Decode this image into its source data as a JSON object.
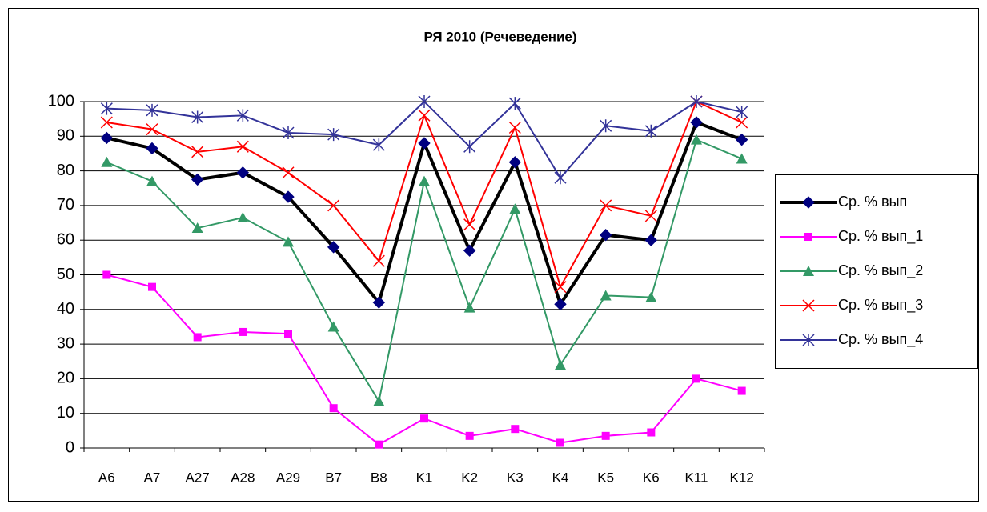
{
  "chart_data": {
    "type": "line",
    "title": "РЯ 2010 (Речеведение)",
    "categories": [
      "A6",
      "A7",
      "A27",
      "A28",
      "A29",
      "B7",
      "B8",
      "K1",
      "K2",
      "K3",
      "K4",
      "K5",
      "K6",
      "K11",
      "K12"
    ],
    "series": [
      {
        "name": "Ср. % вып",
        "color": "#000000",
        "marker_color": "#000080",
        "marker": "diamond",
        "values": [
          89.5,
          86.5,
          77.5,
          79.5,
          72.5,
          58,
          42,
          88,
          57,
          82.5,
          41.5,
          61.5,
          60,
          94,
          89
        ]
      },
      {
        "name": "Ср. % вып_1",
        "color": "#ff00ff",
        "marker_color": "#ff00ff",
        "marker": "square",
        "values": [
          50,
          46.5,
          32,
          33.5,
          33,
          11.5,
          1,
          8.5,
          3.5,
          5.5,
          1.5,
          3.5,
          4.5,
          20,
          16.5
        ]
      },
      {
        "name": "Ср. % вып_2",
        "color": "#339966",
        "marker_color": "#339966",
        "marker": "triangle",
        "values": [
          82.5,
          77,
          63.5,
          66.5,
          59.5,
          35,
          13.5,
          77,
          40.5,
          69,
          24,
          44,
          43.5,
          89,
          83.5
        ]
      },
      {
        "name": "Ср. % вып_3",
        "color": "#ff0000",
        "marker_color": "#ff0000",
        "marker": "x",
        "values": [
          94,
          92,
          85.5,
          87,
          79.5,
          70,
          54,
          96,
          64.5,
          92.5,
          46.5,
          70,
          67,
          100,
          94
        ]
      },
      {
        "name": "Ср. % вып_4",
        "color": "#333399",
        "marker_color": "#333399",
        "marker": "star",
        "values": [
          98,
          97.5,
          95.5,
          96,
          91,
          90.5,
          87.5,
          100,
          87,
          99.5,
          78,
          93,
          91.5,
          100,
          97
        ]
      }
    ],
    "ylim": [
      0,
      100
    ],
    "yticks": [
      0,
      10,
      20,
      30,
      40,
      50,
      60,
      70,
      80,
      90,
      100
    ],
    "grid": true,
    "legend": "right"
  }
}
